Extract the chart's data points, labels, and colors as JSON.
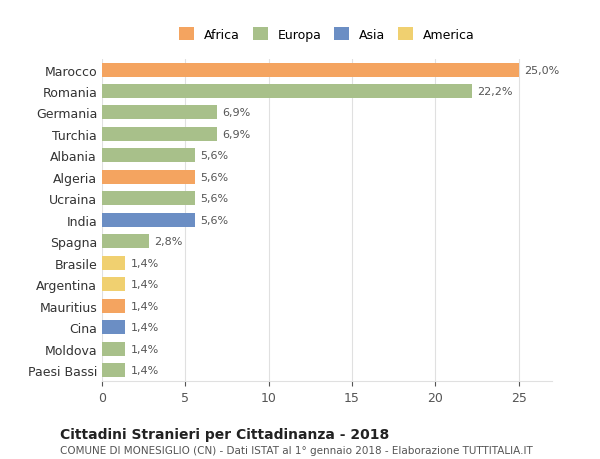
{
  "countries": [
    "Paesi Bassi",
    "Moldova",
    "Cina",
    "Mauritius",
    "Argentina",
    "Brasile",
    "Spagna",
    "India",
    "Ucraina",
    "Algeria",
    "Albania",
    "Turchia",
    "Germania",
    "Romania",
    "Marocco"
  ],
  "values": [
    1.4,
    1.4,
    1.4,
    1.4,
    1.4,
    1.4,
    2.8,
    5.6,
    5.6,
    5.6,
    5.6,
    6.9,
    6.9,
    22.2,
    25.0
  ],
  "continents": [
    "Europa",
    "Europa",
    "Asia",
    "Africa",
    "America",
    "America",
    "Europa",
    "Asia",
    "Europa",
    "Africa",
    "Europa",
    "Europa",
    "Europa",
    "Europa",
    "Africa"
  ],
  "colors": {
    "Africa": "#F4A460",
    "Europa": "#A8C08A",
    "Asia": "#6B8EC4",
    "America": "#F0D070"
  },
  "bar_colors": [
    "#A8C08A",
    "#A8C08A",
    "#6B8EC4",
    "#F4A460",
    "#F0D070",
    "#F0D070",
    "#A8C08A",
    "#6B8EC4",
    "#A8C08A",
    "#F4A460",
    "#A8C08A",
    "#A8C08A",
    "#A8C08A",
    "#A8C08A",
    "#F4A460"
  ],
  "labels": [
    "1,4%",
    "1,4%",
    "1,4%",
    "1,4%",
    "1,4%",
    "1,4%",
    "2,8%",
    "5,6%",
    "5,6%",
    "5,6%",
    "5,6%",
    "6,9%",
    "6,9%",
    "22,2%",
    "25,0%"
  ],
  "xlim": [
    0,
    27
  ],
  "xticks": [
    0,
    5,
    10,
    15,
    20,
    25
  ],
  "title": "Cittadini Stranieri per Cittadinanza - 2018",
  "subtitle": "COMUNE DI MONESIGLIO (CN) - Dati ISTAT al 1° gennaio 2018 - Elaborazione TUTTITALIA.IT",
  "legend_order": [
    "Africa",
    "Europa",
    "Asia",
    "America"
  ],
  "background_color": "#ffffff",
  "grid_color": "#e0e0e0"
}
